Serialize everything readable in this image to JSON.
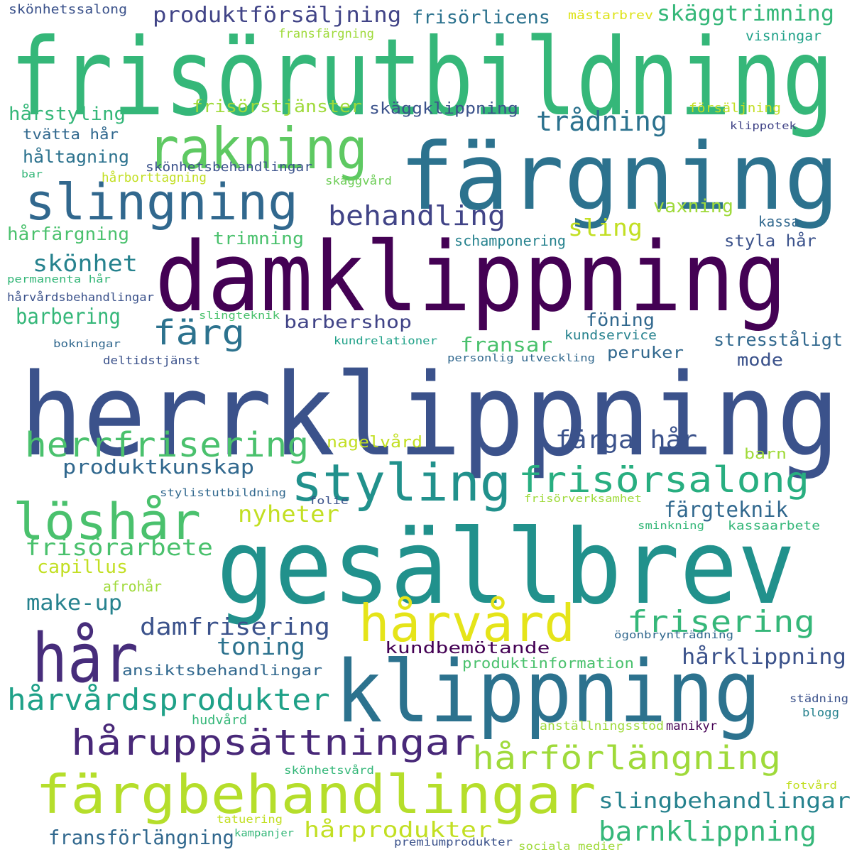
{
  "words": [
    {
      "text": "frisörutbildning",
      "color": "#35b779"
    },
    {
      "text": "färgning",
      "color": "#2c728e"
    },
    {
      "text": "damklippning",
      "color": "#440154"
    },
    {
      "text": "herrklippning",
      "color": "#3b528b"
    },
    {
      "text": "gesällbrev",
      "color": "#21918c"
    },
    {
      "text": "klippning",
      "color": "#2c728e"
    },
    {
      "text": "hår",
      "color": "#472d7b"
    },
    {
      "text": "rakning",
      "color": "#5ec962"
    },
    {
      "text": "slingning",
      "color": "#31688e"
    },
    {
      "text": "styling",
      "color": "#21918c"
    },
    {
      "text": "hårvård",
      "color": "#e5e419"
    },
    {
      "text": "färgbehandlingar",
      "color": "#b5de2b"
    },
    {
      "text": "löshår",
      "color": "#4ac16d"
    },
    {
      "text": "håruppsättningar",
      "color": "#482878"
    },
    {
      "text": "frisörsalong",
      "color": "#28ae80"
    },
    {
      "text": "herrfrisering",
      "color": "#4ac16d"
    },
    {
      "text": "hårvårdsprodukter",
      "color": "#1fa188"
    },
    {
      "text": "hårförlängning",
      "color": "#9fda3a"
    },
    {
      "text": "frisering",
      "color": "#35b779"
    },
    {
      "text": "behandling",
      "color": "#414487"
    },
    {
      "text": "färg",
      "color": "#2c728e"
    },
    {
      "text": "produktförsäljning",
      "color": "#414487"
    },
    {
      "text": "skäggtrimning",
      "color": "#35b779"
    },
    {
      "text": "trådning",
      "color": "#2c728e"
    },
    {
      "text": "frisörlicens",
      "color": "#2c728e"
    },
    {
      "text": "frisörstjänster",
      "color": "#9fda3a"
    },
    {
      "text": "skäggklippning",
      "color": "#3b528b"
    },
    {
      "text": "hårstyling",
      "color": "#35b779"
    },
    {
      "text": "tvätta hår",
      "color": "#31688e"
    },
    {
      "text": "håltagning",
      "color": "#2c728e"
    },
    {
      "text": "skönhetsbehandlingar",
      "color": "#3b528b"
    },
    {
      "text": "hårborttagning",
      "color": "#c2df23"
    },
    {
      "text": "skäggvård",
      "color": "#6ece58"
    },
    {
      "text": "hårfärgning",
      "color": "#4ac16d"
    },
    {
      "text": "trimning",
      "color": "#4ac16d"
    },
    {
      "text": "sling",
      "color": "#c2df23"
    },
    {
      "text": "vaxning",
      "color": "#9fda3a"
    },
    {
      "text": "kassa",
      "color": "#31688e"
    },
    {
      "text": "schamponering",
      "color": "#26828e"
    },
    {
      "text": "styla hår",
      "color": "#3b528b"
    },
    {
      "text": "skönhet",
      "color": "#26828e"
    },
    {
      "text": "barbering",
      "color": "#35b779"
    },
    {
      "text": "barbershop",
      "color": "#414487"
    },
    {
      "text": "föning",
      "color": "#31688e"
    },
    {
      "text": "fransar",
      "color": "#4ac16d"
    },
    {
      "text": "kundservice",
      "color": "#26828e"
    },
    {
      "text": "stresståligt",
      "color": "#31688e"
    },
    {
      "text": "peruker",
      "color": "#31688e"
    },
    {
      "text": "mode",
      "color": "#3b528b"
    },
    {
      "text": "färga hår",
      "color": "#3b528b"
    },
    {
      "text": "produktkunskap",
      "color": "#31688e"
    },
    {
      "text": "nagelvård",
      "color": "#c2df23"
    },
    {
      "text": "barn",
      "color": "#a0da39"
    },
    {
      "text": "nyheter",
      "color": "#c2df23"
    },
    {
      "text": "färgteknik",
      "color": "#31688e"
    },
    {
      "text": "frisörarbete",
      "color": "#4ac16d"
    },
    {
      "text": "capillus",
      "color": "#c2df23"
    },
    {
      "text": "make-up",
      "color": "#26828e"
    },
    {
      "text": "afrohår",
      "color": "#9fda3a"
    },
    {
      "text": "damfrisering",
      "color": "#3b528b"
    },
    {
      "text": "toning",
      "color": "#2c728e"
    },
    {
      "text": "kundbemötande",
      "color": "#440154"
    },
    {
      "text": "ansiktsbehandlingar",
      "color": "#31688e"
    },
    {
      "text": "produktinformation",
      "color": "#4ac16d"
    },
    {
      "text": "hårklippning",
      "color": "#3b528b"
    },
    {
      "text": "hudvård",
      "color": "#35b779"
    },
    {
      "text": "anställningsstöd",
      "color": "#9fda3a"
    },
    {
      "text": "manikyr",
      "color": "#440154"
    },
    {
      "text": "slingbehandlingar",
      "color": "#26828e"
    },
    {
      "text": "hårprodukter",
      "color": "#c2df23"
    },
    {
      "text": "barnklippning",
      "color": "#35b779"
    },
    {
      "text": "fransförlängning",
      "color": "#31688e"
    },
    {
      "text": "skönhetssalong",
      "color": "#3b528b"
    },
    {
      "text": "fransfärgning",
      "color": "#9fda3a"
    },
    {
      "text": "mästarbrev",
      "color": "#dde318"
    },
    {
      "text": "visningar",
      "color": "#1fa188"
    },
    {
      "text": "försäljning",
      "color": "#c2df23"
    },
    {
      "text": "klippotek",
      "color": "#414487"
    },
    {
      "text": "bar",
      "color": "#35b779"
    },
    {
      "text": "permanenta hår",
      "color": "#35b779"
    },
    {
      "text": "hårvårdsbehandlingar",
      "color": "#3b528b"
    },
    {
      "text": "slingteknik",
      "color": "#4ac16d"
    },
    {
      "text": "bokningar",
      "color": "#31688e"
    },
    {
      "text": "deltidstjänst",
      "color": "#3b528b"
    },
    {
      "text": "kundrelationer",
      "color": "#1fa188"
    },
    {
      "text": "personlig utveckling",
      "color": "#31688e"
    },
    {
      "text": "stylistutbildning",
      "color": "#31688e"
    },
    {
      "text": "folie",
      "color": "#3b528b"
    },
    {
      "text": "frisörverksamhet",
      "color": "#9fda3a"
    },
    {
      "text": "sminkning",
      "color": "#35b779"
    },
    {
      "text": "kassaarbete",
      "color": "#35b779"
    },
    {
      "text": "ögonbrynträdning",
      "color": "#31688e"
    },
    {
      "text": "städning",
      "color": "#3b528b"
    },
    {
      "text": "blogg",
      "color": "#26828e"
    },
    {
      "text": "skönhetsvård",
      "color": "#35b779"
    },
    {
      "text": "fotvård",
      "color": "#c2df23"
    },
    {
      "text": "tatuering",
      "color": "#c2df23"
    },
    {
      "text": "kampanjer",
      "color": "#35b779"
    },
    {
      "text": "premiumprodukter",
      "color": "#3b528b"
    },
    {
      "text": "sociala medier",
      "color": "#9fda3a"
    }
  ]
}
